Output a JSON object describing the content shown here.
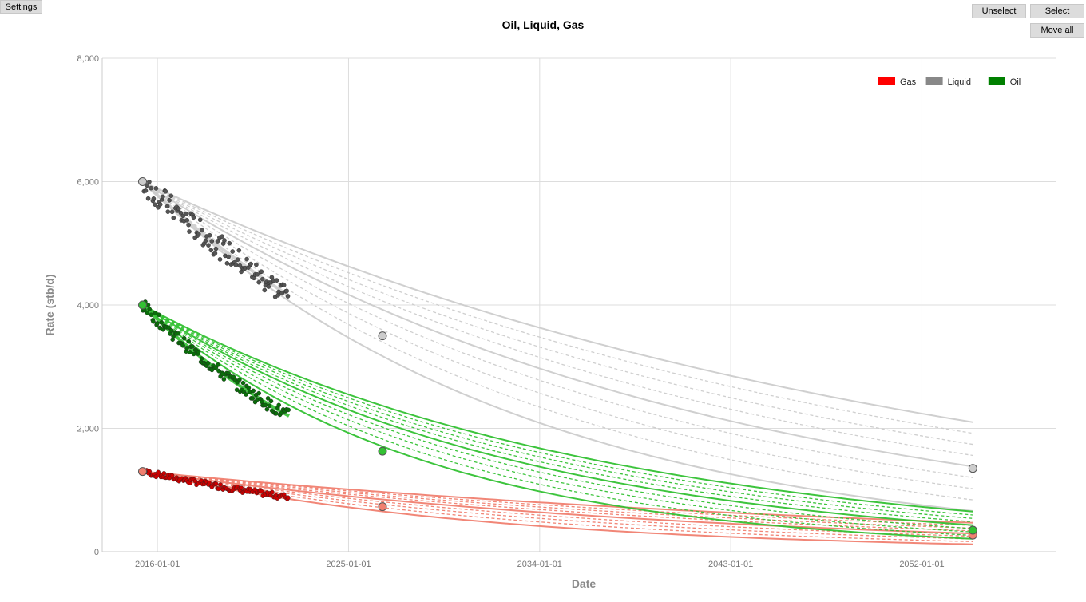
{
  "toolbar": {
    "settings_label": "Settings",
    "unselect_label": "Unselect",
    "select_label": "Select",
    "move_all_label": "Move all"
  },
  "chart_data": {
    "type": "scatter",
    "title": "Oil, Liquid, Gas",
    "xlabel": "Date",
    "ylabel": "Rate (stb/d)",
    "x_ticks": [
      "2016-01-01",
      "2025-01-01",
      "2034-01-01",
      "2043-01-01",
      "2052-01-01"
    ],
    "y_ticks": [
      "0",
      "2,000",
      "4,000",
      "6,000",
      "8,000"
    ],
    "xlim": [
      2013.4,
      2058.3
    ],
    "ylim": [
      0,
      8000
    ],
    "grid": true,
    "legend_position": "top-right",
    "history_end_year": 2022.2,
    "forecast_end_year": 2054.4,
    "series": [
      {
        "name": "Gas",
        "color": "#ff0000",
        "scatter_color": "#cc0000",
        "forecast_color": "#f08070",
        "initial_rate": 1300,
        "history_end_rate": 880,
        "anchor_points": [
          [
            2015.3,
            1300
          ],
          [
            2026.6,
            730
          ],
          [
            2054.4,
            270
          ]
        ],
        "forecast_end_range": [
          120,
          470
        ],
        "scatter_spread": 45
      },
      {
        "name": "Liquid",
        "color": "#888888",
        "scatter_color": "#555555",
        "forecast_color": "#cccccc",
        "initial_rate": 6000,
        "history_end_rate": 4150,
        "anchor_points": [
          [
            2015.3,
            6000
          ],
          [
            2026.6,
            3500
          ],
          [
            2054.4,
            1350
          ]
        ],
        "forecast_end_range": [
          660,
          2100
        ],
        "scatter_spread": 200
      },
      {
        "name": "Oil",
        "color": "#008000",
        "scatter_color": "#0a6e0a",
        "forecast_color": "#33c133",
        "initial_rate": 4000,
        "history_end_rate": 2200,
        "anchor_points": [
          [
            2015.3,
            4000
          ],
          [
            2026.6,
            1630
          ],
          [
            2054.4,
            350
          ]
        ],
        "forecast_end_range": [
          210,
          650
        ],
        "scatter_spread": 100
      }
    ]
  }
}
